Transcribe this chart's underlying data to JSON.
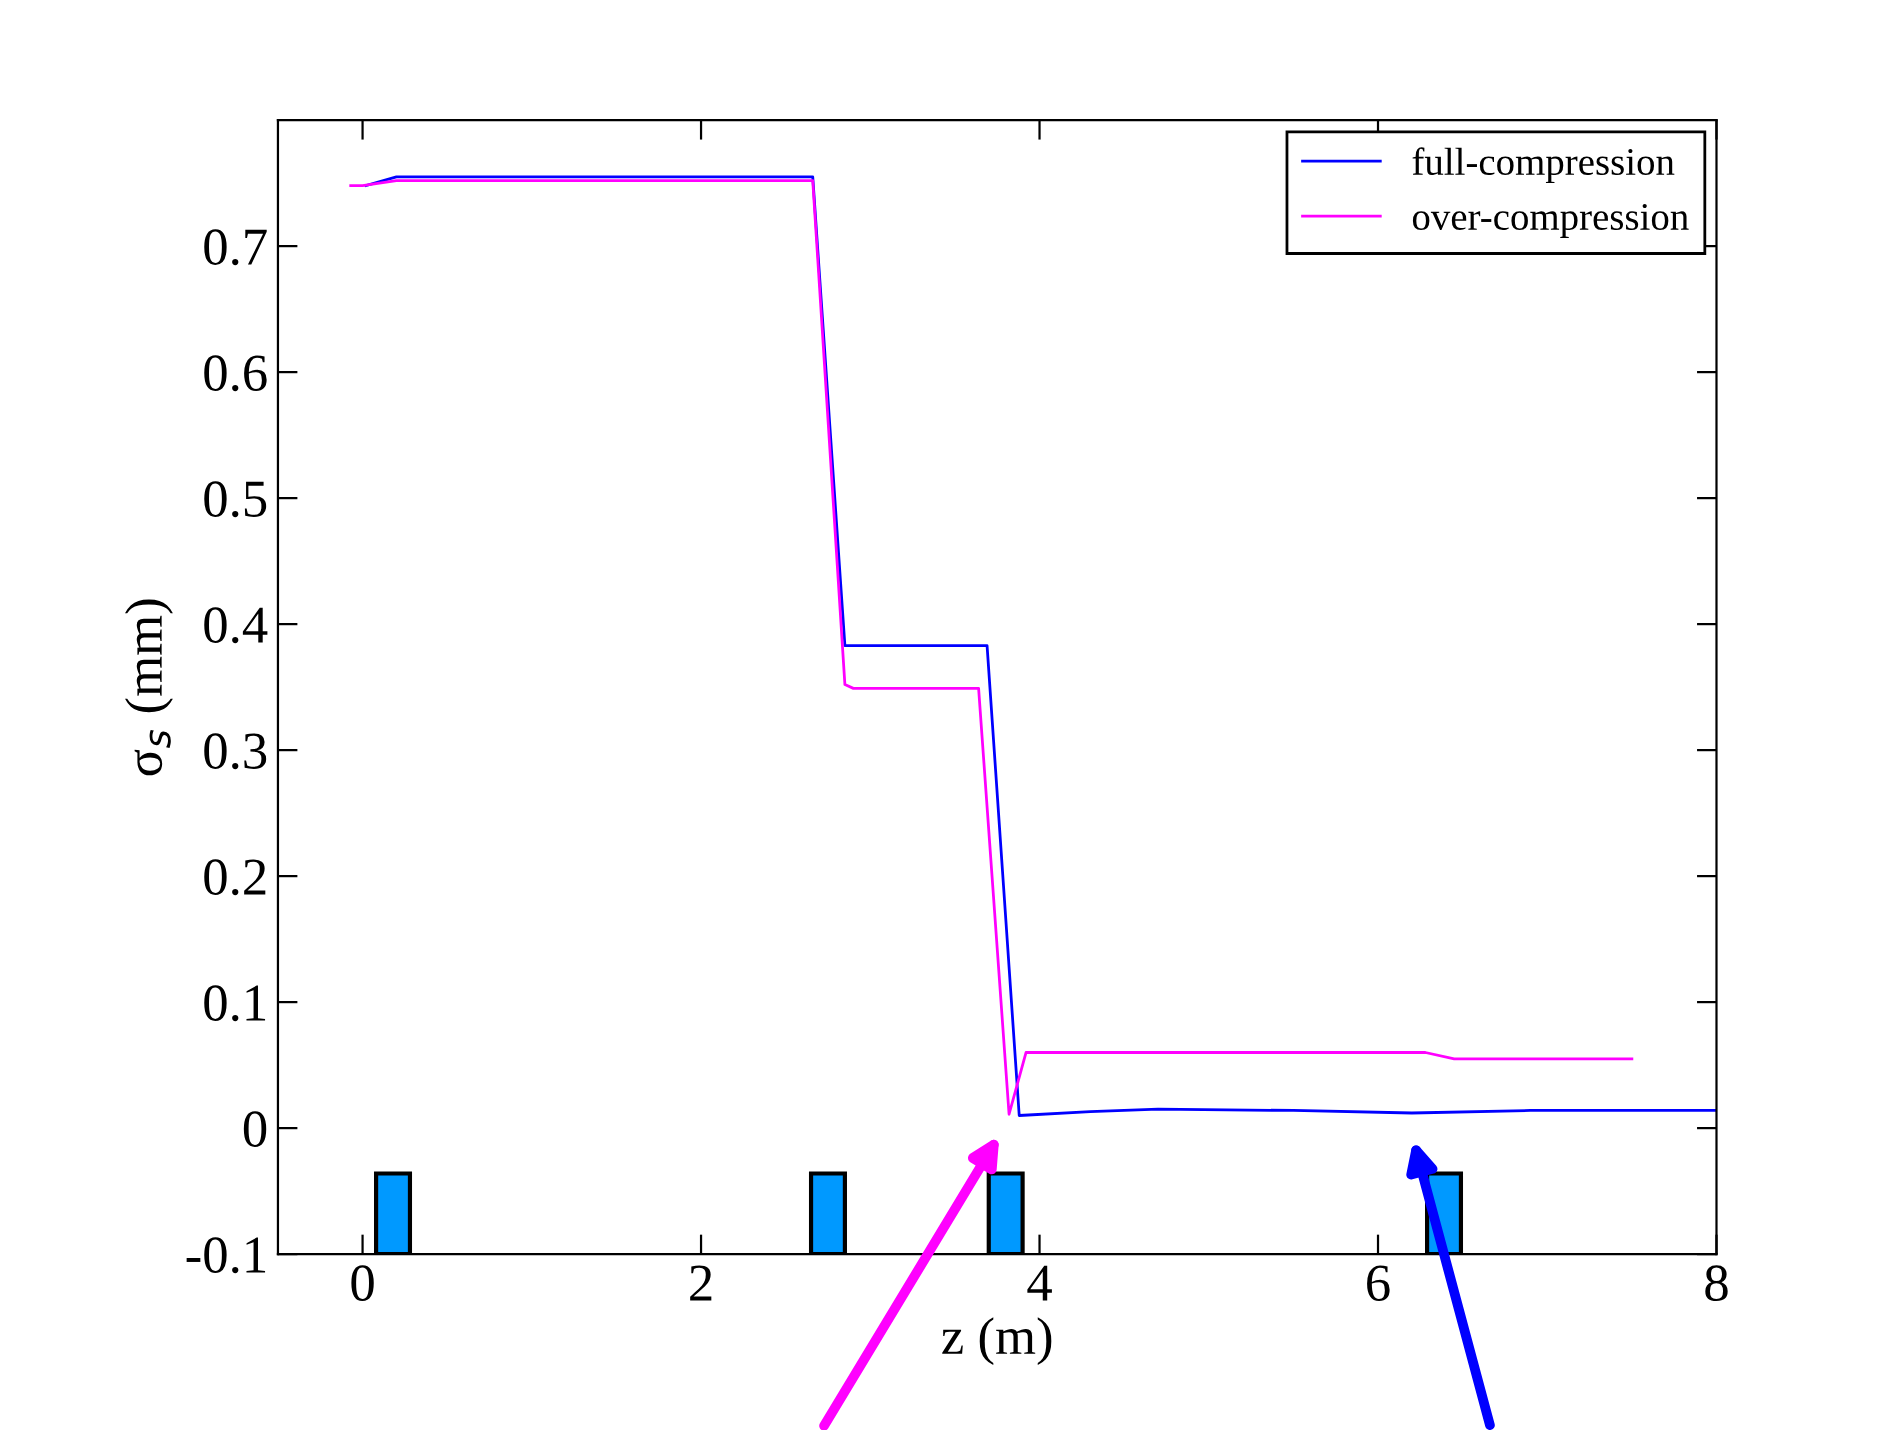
{
  "chart_data": {
    "type": "line",
    "xlabel": "z (m)",
    "ylabel": "σ$_{s}$ (mm)",
    "xlim": [
      -0.5,
      8
    ],
    "ylim": [
      -0.1,
      0.8
    ],
    "xticks": [
      0,
      2,
      4,
      6,
      8
    ],
    "yticks": [
      -0.1,
      0,
      0.1,
      0.2,
      0.3,
      0.4,
      0.5,
      0.6,
      0.7
    ],
    "grid": false,
    "legend": "top right",
    "marker": "none",
    "line_style": "solid",
    "series": [
      {
        "name": "full-compression",
        "color": "#0000ff",
        "x": [
          0.02,
          0.2,
          2.66,
          2.85,
          3.69,
          3.88,
          4.3,
          4.7,
          5.5,
          6.2,
          6.9,
          8
        ],
        "values": [
          0.748,
          0.755,
          0.755,
          0.383,
          0.383,
          0.01,
          0.013,
          0.015,
          0.014,
          0.012,
          0.014,
          0.014
        ]
      },
      {
        "name": "over-compression",
        "color": "#ff00ff",
        "x": [
          -0.07,
          0.0,
          0.2,
          2.66,
          2.85,
          2.9,
          3.64,
          3.82,
          3.92,
          6.28,
          6.45,
          7.5
        ],
        "values": [
          0.748,
          0.748,
          0.752,
          0.752,
          0.352,
          0.349,
          0.349,
          0.011,
          0.06,
          0.06,
          0.055,
          0.055
        ]
      },
      {
        "type": "bar",
        "color": "#0099ff",
        "x": [
          0.18,
          2.75,
          3.8,
          6.39
        ],
        "base": [
          -0.1,
          -0.1,
          -0.1,
          -0.1
        ],
        "values": [
          0.064,
          0.064,
          0.064,
          0.064
        ]
      }
    ]
  }
}
